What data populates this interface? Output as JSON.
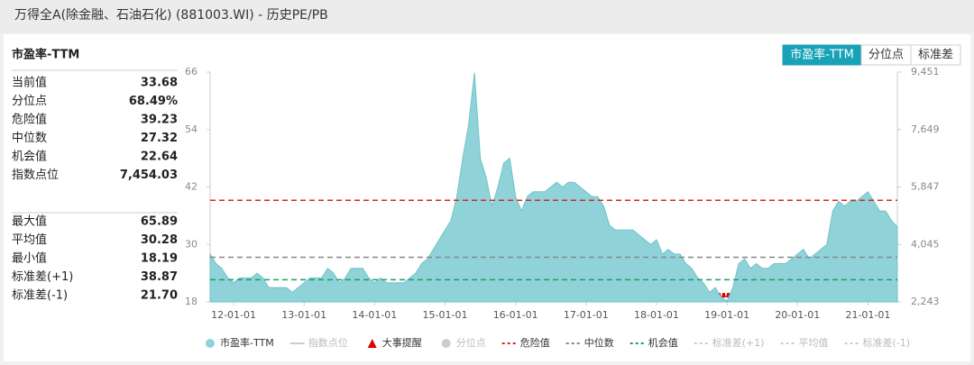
{
  "header": {
    "title": "万得全A(除金融、石油石化) (881003.WI) - 历史PE/PB"
  },
  "panel": {
    "title": "市盈率-TTM"
  },
  "tabs": [
    "市盈率-TTM",
    "分位点",
    "标准差"
  ],
  "stats": [
    [
      {
        "label": "当前值",
        "value": "33.68"
      },
      {
        "label": "分位点",
        "value": "68.49%"
      },
      {
        "label": "危险值",
        "value": "39.23"
      },
      {
        "label": "中位数",
        "value": "27.32"
      },
      {
        "label": "机会值",
        "value": "22.64"
      },
      {
        "label": "指数点位",
        "value": "7,454.03"
      }
    ],
    [
      {
        "label": "最大值",
        "value": "65.89"
      },
      {
        "label": "平均值",
        "value": "30.28"
      },
      {
        "label": "最小值",
        "value": "18.19"
      },
      {
        "label": "标准差(+1)",
        "value": "38.87"
      },
      {
        "label": "标准差(-1)",
        "value": "21.70"
      }
    ]
  ],
  "chart_data": {
    "type": "area",
    "x": [
      "11-09-01",
      "11-10-01",
      "11-11-01",
      "11-12-01",
      "12-01-01",
      "12-02-01",
      "12-03-01",
      "12-04-01",
      "12-05-01",
      "12-06-01",
      "12-07-01",
      "12-08-01",
      "12-09-01",
      "12-10-01",
      "12-11-01",
      "12-12-01",
      "13-01-01",
      "13-02-01",
      "13-03-01",
      "13-04-01",
      "13-05-01",
      "13-06-01",
      "13-07-01",
      "13-08-01",
      "13-09-01",
      "13-10-01",
      "13-11-01",
      "13-12-01",
      "14-01-01",
      "14-02-01",
      "14-03-01",
      "14-04-01",
      "14-05-01",
      "14-06-01",
      "14-07-01",
      "14-08-01",
      "14-09-01",
      "14-10-01",
      "14-11-01",
      "14-12-01",
      "15-01-01",
      "15-02-01",
      "15-03-01",
      "15-04-01",
      "15-05-01",
      "15-06-01",
      "15-07-01",
      "15-08-01",
      "15-09-01",
      "15-10-01",
      "15-11-01",
      "15-12-01",
      "16-01-01",
      "16-02-01",
      "16-03-01",
      "16-04-01",
      "16-05-01",
      "16-06-01",
      "16-07-01",
      "16-08-01",
      "16-09-01",
      "16-10-01",
      "16-11-01",
      "16-12-01",
      "17-01-01",
      "17-02-01",
      "17-03-01",
      "17-04-01",
      "17-05-01",
      "17-06-01",
      "17-07-01",
      "17-08-01",
      "17-09-01",
      "17-10-01",
      "17-11-01",
      "17-12-01",
      "18-01-01",
      "18-02-01",
      "18-03-01",
      "18-04-01",
      "18-05-01",
      "18-06-01",
      "18-07-01",
      "18-08-01",
      "18-09-01",
      "18-10-01",
      "18-11-01",
      "18-12-01",
      "19-01-01",
      "19-02-01",
      "19-03-01",
      "19-04-01",
      "19-05-01",
      "19-06-01",
      "19-07-01",
      "19-08-01",
      "19-09-01",
      "19-10-01",
      "19-11-01",
      "19-12-01",
      "20-01-01",
      "20-02-01",
      "20-03-01",
      "20-04-01",
      "20-05-01",
      "20-06-01",
      "20-07-01",
      "20-08-01",
      "20-09-01",
      "20-10-01",
      "20-11-01",
      "20-12-01",
      "21-01-01",
      "21-02-01",
      "21-03-01",
      "21-04-01",
      "21-05-01",
      "21-06-01"
    ],
    "series": [
      {
        "name": "市盈率-TTM",
        "color": "#8fd3d9",
        "values": [
          28,
          26,
          25,
          23,
          22,
          23,
          23,
          23,
          24,
          23,
          21,
          21,
          21,
          21,
          20,
          21,
          22,
          23,
          23,
          23,
          25,
          24,
          22,
          23,
          25,
          25,
          25,
          23,
          22,
          23,
          22,
          22,
          22,
          22,
          23,
          24,
          26,
          27,
          29,
          31,
          33,
          35,
          40,
          48,
          55,
          65.89,
          48,
          44,
          38,
          42,
          47,
          48,
          40,
          37,
          40,
          41,
          41,
          41,
          42,
          43,
          42,
          43,
          43,
          42,
          41,
          40,
          40,
          38,
          34,
          33,
          33,
          33,
          33,
          32,
          31,
          30,
          31,
          28,
          29,
          28,
          28,
          26,
          25,
          23,
          22,
          20,
          21,
          19,
          18.19,
          21,
          26,
          27,
          25,
          26,
          25,
          25,
          26,
          26,
          26,
          27,
          28,
          29,
          27,
          28,
          29,
          30,
          37,
          39,
          38,
          39,
          39,
          40,
          41,
          39,
          37,
          37,
          35,
          33.68
        ]
      }
    ],
    "xlim": [
      "11-09-01",
      "21-06-01"
    ],
    "xticks": [
      "12-01-01",
      "13-01-01",
      "14-01-01",
      "15-01-01",
      "16-01-01",
      "17-01-01",
      "18-01-01",
      "19-01-01",
      "20-01-01",
      "21-01-01"
    ],
    "ylim": [
      18,
      66
    ],
    "yticks": [
      18,
      30,
      42,
      54,
      66
    ],
    "y2lim": [
      2243,
      9451
    ],
    "y2ticks": [
      {
        "value": 2243,
        "label": "2,243"
      },
      {
        "value": 4045,
        "label": "4,045"
      },
      {
        "value": 5847,
        "label": "5,847"
      },
      {
        "value": 7649,
        "label": "7,649"
      },
      {
        "value": 9451,
        "label": "9,451"
      }
    ],
    "reference_lines": [
      {
        "name": "危险值",
        "color": "#d62728",
        "stat": "stats.0.2.value"
      },
      {
        "name": "中位数",
        "color": "#888888",
        "stat": "stats.0.3.value"
      },
      {
        "name": "机会值",
        "color": "#1a9e6a",
        "stat": "stats.0.4.value"
      }
    ],
    "legend_off": [
      "指数点位",
      "大事提醒",
      "分位点",
      "标准差(+1)",
      "平均值",
      "标准差(-1)"
    ]
  }
}
